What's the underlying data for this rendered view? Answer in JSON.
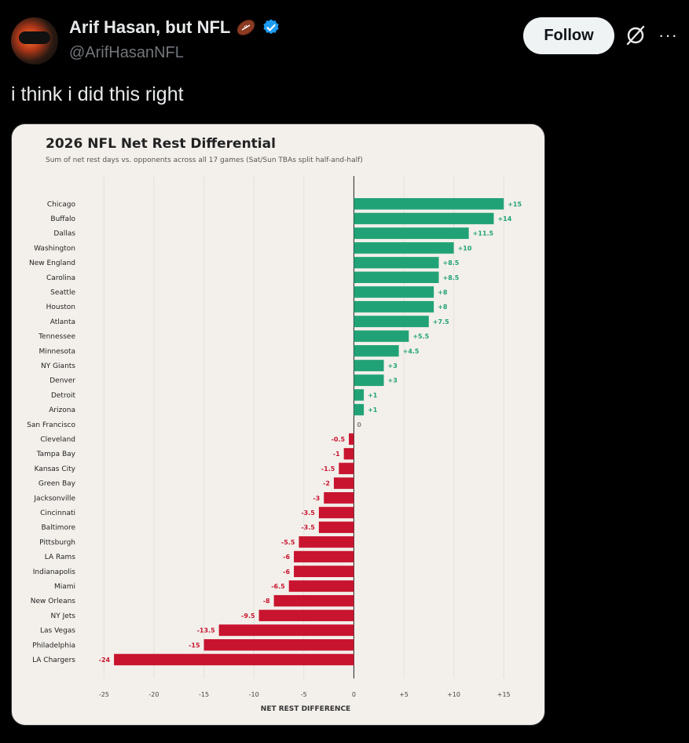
{
  "tweet": {
    "display_name": "Arif Hasan, but NFL",
    "handle": "@ArifHasanNFL",
    "follow_label": "Follow",
    "text": "i think i did this right",
    "more_label": "···"
  },
  "colors": {
    "positive": "#21a276",
    "negative": "#c8142f",
    "zero": "#888888"
  },
  "chart_data": {
    "type": "bar",
    "orientation": "horizontal",
    "title": "2026 NFL Net Rest Differential",
    "subtitle": "Sum of net rest days vs. opponents across all 17 games (Sat/Sun TBAs split half-and-half)",
    "xlabel": "NET REST DIFFERENCE",
    "xlim": [
      -25.5,
      17.5
    ],
    "xticks": [
      -25,
      -20,
      -15,
      -10,
      -5,
      0,
      5,
      10,
      15
    ],
    "xtick_labels": [
      "-25",
      "-20",
      "-15",
      "-10",
      "-5",
      "0",
      "+5",
      "+10",
      "+15"
    ],
    "grid": "vertical",
    "categories": [
      "Chicago",
      "Buffalo",
      "Dallas",
      "Washington",
      "New England",
      "Carolina",
      "Seattle",
      "Houston",
      "Atlanta",
      "Tennessee",
      "Minnesota",
      "NY Giants",
      "Denver",
      "Detroit",
      "Arizona",
      "San Francisco",
      "Cleveland",
      "Tampa Bay",
      "Kansas City",
      "Green Bay",
      "Jacksonville",
      "Cincinnati",
      "Baltimore",
      "Pittsburgh",
      "LA Rams",
      "Indianapolis",
      "Miami",
      "New Orleans",
      "NY Jets",
      "Las Vegas",
      "Philadelphia",
      "LA Chargers"
    ],
    "values": [
      15,
      14,
      11.5,
      10,
      8.5,
      8.5,
      8,
      8,
      7.5,
      5.5,
      4.5,
      3,
      3,
      1,
      1,
      0,
      -0.5,
      -1,
      -1.5,
      -2,
      -3,
      -3.5,
      -3.5,
      -5.5,
      -6,
      -6,
      -6.5,
      -8,
      -9.5,
      -13.5,
      -15,
      -24
    ],
    "value_labels": [
      "+15",
      "+14",
      "+11.5",
      "+10",
      "+8.5",
      "+8.5",
      "+8",
      "+8",
      "+7.5",
      "+5.5",
      "+4.5",
      "+3",
      "+3",
      "+1",
      "+1",
      "0",
      "-0.5",
      "-1",
      "-1.5",
      "-2",
      "-3",
      "-3.5",
      "-3.5",
      "-5.5",
      "-6",
      "-6",
      "-6.5",
      "-8",
      "-9.5",
      "-13.5",
      "-15",
      "-24"
    ]
  }
}
